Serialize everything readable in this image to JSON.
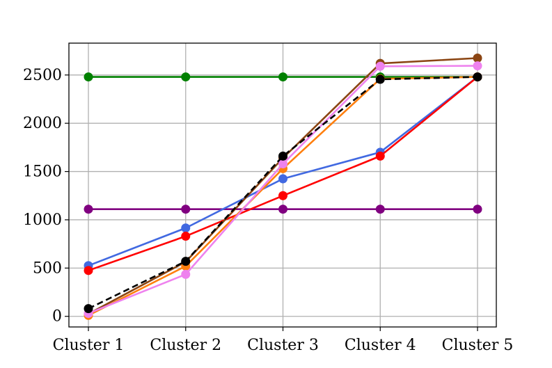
{
  "chart_data": {
    "type": "line",
    "categories": [
      "Cluster 1",
      "Cluster 2",
      "Cluster 3",
      "Cluster 4",
      "Cluster 5"
    ],
    "y_ticks": [
      0,
      500,
      1000,
      1500,
      2000,
      2500
    ],
    "y_tick_labels": [
      "0",
      "500",
      "1000",
      "1500",
      "2000",
      "2500"
    ],
    "ylim": [
      -110,
      2830
    ],
    "grid": true,
    "title": "",
    "xlabel": "",
    "ylabel": "",
    "series": [
      {
        "color": "#008000",
        "dashed": false,
        "values": [
          2480,
          2480,
          2480,
          2480,
          2480
        ]
      },
      {
        "color": "#800080",
        "dashed": false,
        "values": [
          1110,
          1110,
          1110,
          1110,
          1110
        ]
      },
      {
        "color": "#4169e1",
        "dashed": false,
        "values": [
          525,
          915,
          1425,
          1700,
          2480
        ]
      },
      {
        "color": "#ff0000",
        "dashed": false,
        "values": [
          475,
          830,
          1250,
          1660,
          2480
        ]
      },
      {
        "color": "#8b4513",
        "dashed": false,
        "values": [
          25,
          565,
          1640,
          2620,
          2675
        ]
      },
      {
        "color": "#ff7f0e",
        "dashed": false,
        "values": [
          10,
          520,
          1530,
          2460,
          2480
        ]
      },
      {
        "color": "#ee82ee",
        "dashed": false,
        "values": [
          30,
          435,
          1580,
          2590,
          2595
        ]
      },
      {
        "color": "#000000",
        "dashed": true,
        "values": [
          80,
          570,
          1660,
          2455,
          2480
        ]
      }
    ]
  }
}
